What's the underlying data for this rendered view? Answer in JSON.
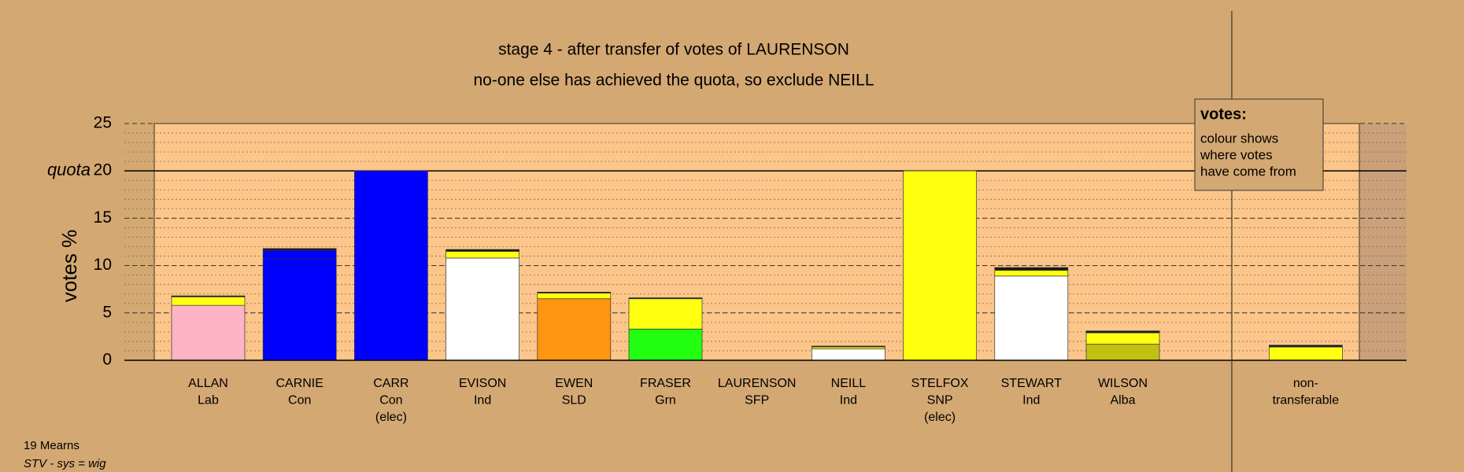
{
  "chart_data": {
    "type": "bar",
    "stacked": true,
    "title": "stage 4 - after transfer of votes of LAURENSON",
    "subtitle": "no-one else has achieved the quota, so exclude NEILL",
    "y_label": "votes %",
    "quota_label": "quota",
    "quota": 20,
    "categories": [
      [
        "ALLAN",
        "Lab"
      ],
      [
        "CARNIE",
        "Con"
      ],
      [
        "CARR",
        "Con",
        "(elec)"
      ],
      [
        "EVISON",
        "Ind"
      ],
      [
        "EWEN",
        "SLD"
      ],
      [
        "FRASER",
        "Grn"
      ],
      [
        "LAURENSON",
        "SFP"
      ],
      [
        "NEILL",
        "Ind"
      ],
      [
        "STELFOX",
        "SNP",
        "(elec)"
      ],
      [
        "STEWART",
        "Ind"
      ],
      [
        "WILSON",
        "Alba"
      ],
      [
        "non-",
        "transferable"
      ]
    ],
    "series": [
      {
        "colors": [
          "#ffb3c6",
          "#0000ff",
          "#0000ff",
          "#ffffff",
          "#ff9510",
          "#22ff10",
          "#ffffff",
          "#ffffff",
          "#ffff10",
          "#ffffff",
          "#c2c010",
          "#ffffff"
        ],
        "values": [
          5.8,
          10.7,
          20,
          10.8,
          6.5,
          3.3,
          0,
          1.2,
          20,
          8.9,
          1.7,
          0
        ]
      },
      {
        "color": "#0000ff",
        "values": [
          0,
          0.9,
          0,
          0,
          0,
          0,
          0,
          0,
          0,
          0,
          0,
          0
        ]
      },
      {
        "color": "#ffff10",
        "values": [
          0.9,
          0,
          0,
          0.7,
          0.6,
          3.2,
          0,
          0.2,
          0,
          0.6,
          1.2,
          1.4
        ]
      },
      {
        "color": "#1a1a1a",
        "values": [
          0.1,
          0.2,
          0,
          0.2,
          0.1,
          0.1,
          0,
          0.1,
          0,
          0.3,
          0.2,
          0.2
        ]
      }
    ],
    "ylim": [
      0,
      25
    ],
    "yticks": [
      0,
      5,
      10,
      15,
      20,
      25
    ],
    "minor_step": 1,
    "grid": true,
    "legend": {
      "title": "votes:",
      "lines": [
        "colour shows",
        "where votes",
        "have come from"
      ]
    },
    "footer": {
      "ward": "19 Mearns",
      "system": "STV - sys = wig"
    }
  }
}
